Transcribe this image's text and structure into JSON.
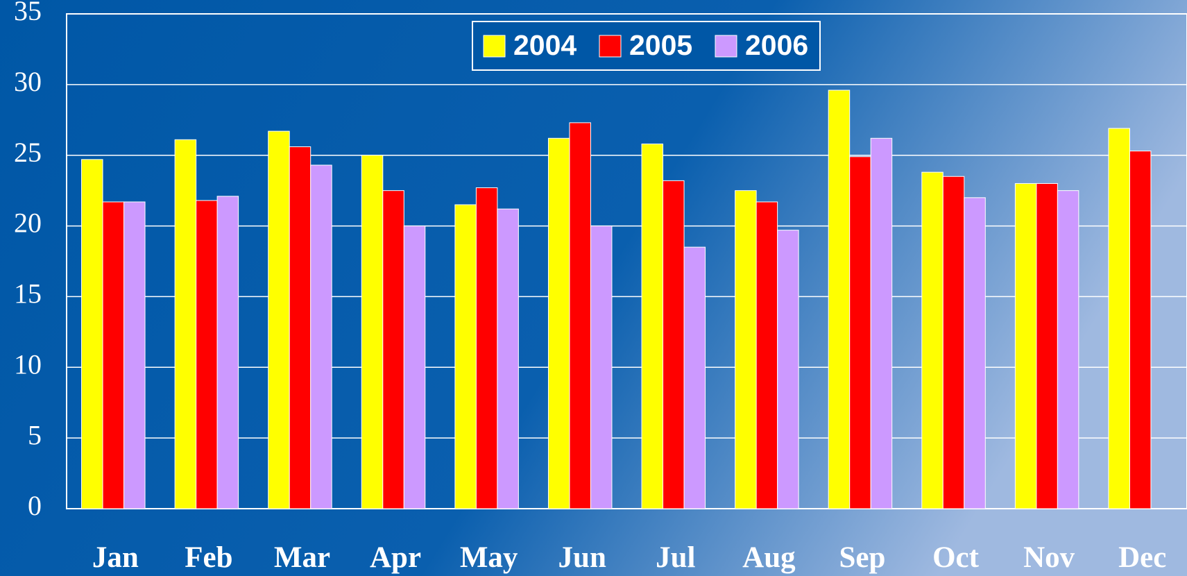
{
  "chart_data": {
    "type": "bar",
    "categories": [
      "Jan",
      "Feb",
      "Mar",
      "Apr",
      "May",
      "Jun",
      "Jul",
      "Aug",
      "Sep",
      "Oct",
      "Nov",
      "Dec"
    ],
    "series": [
      {
        "name": "2004",
        "color": "#ffff00",
        "values": [
          24.7,
          26.1,
          26.7,
          25.0,
          21.5,
          26.2,
          25.8,
          22.5,
          29.6,
          23.8,
          23.0,
          26.9
        ]
      },
      {
        "name": "2005",
        "color": "#ff0000",
        "values": [
          21.7,
          21.8,
          25.6,
          22.5,
          22.7,
          27.3,
          23.2,
          21.7,
          24.9,
          23.5,
          23.0,
          25.3
        ]
      },
      {
        "name": "2006",
        "color": "#cc99ff",
        "values": [
          21.7,
          22.1,
          24.3,
          20.0,
          21.2,
          20.0,
          18.5,
          19.7,
          26.2,
          22.0,
          22.5,
          null
        ]
      }
    ],
    "ylim": [
      0,
      35
    ],
    "yticks": [
      0,
      5,
      10,
      15,
      20,
      25,
      30,
      35
    ],
    "grid": true,
    "legend": "top"
  }
}
